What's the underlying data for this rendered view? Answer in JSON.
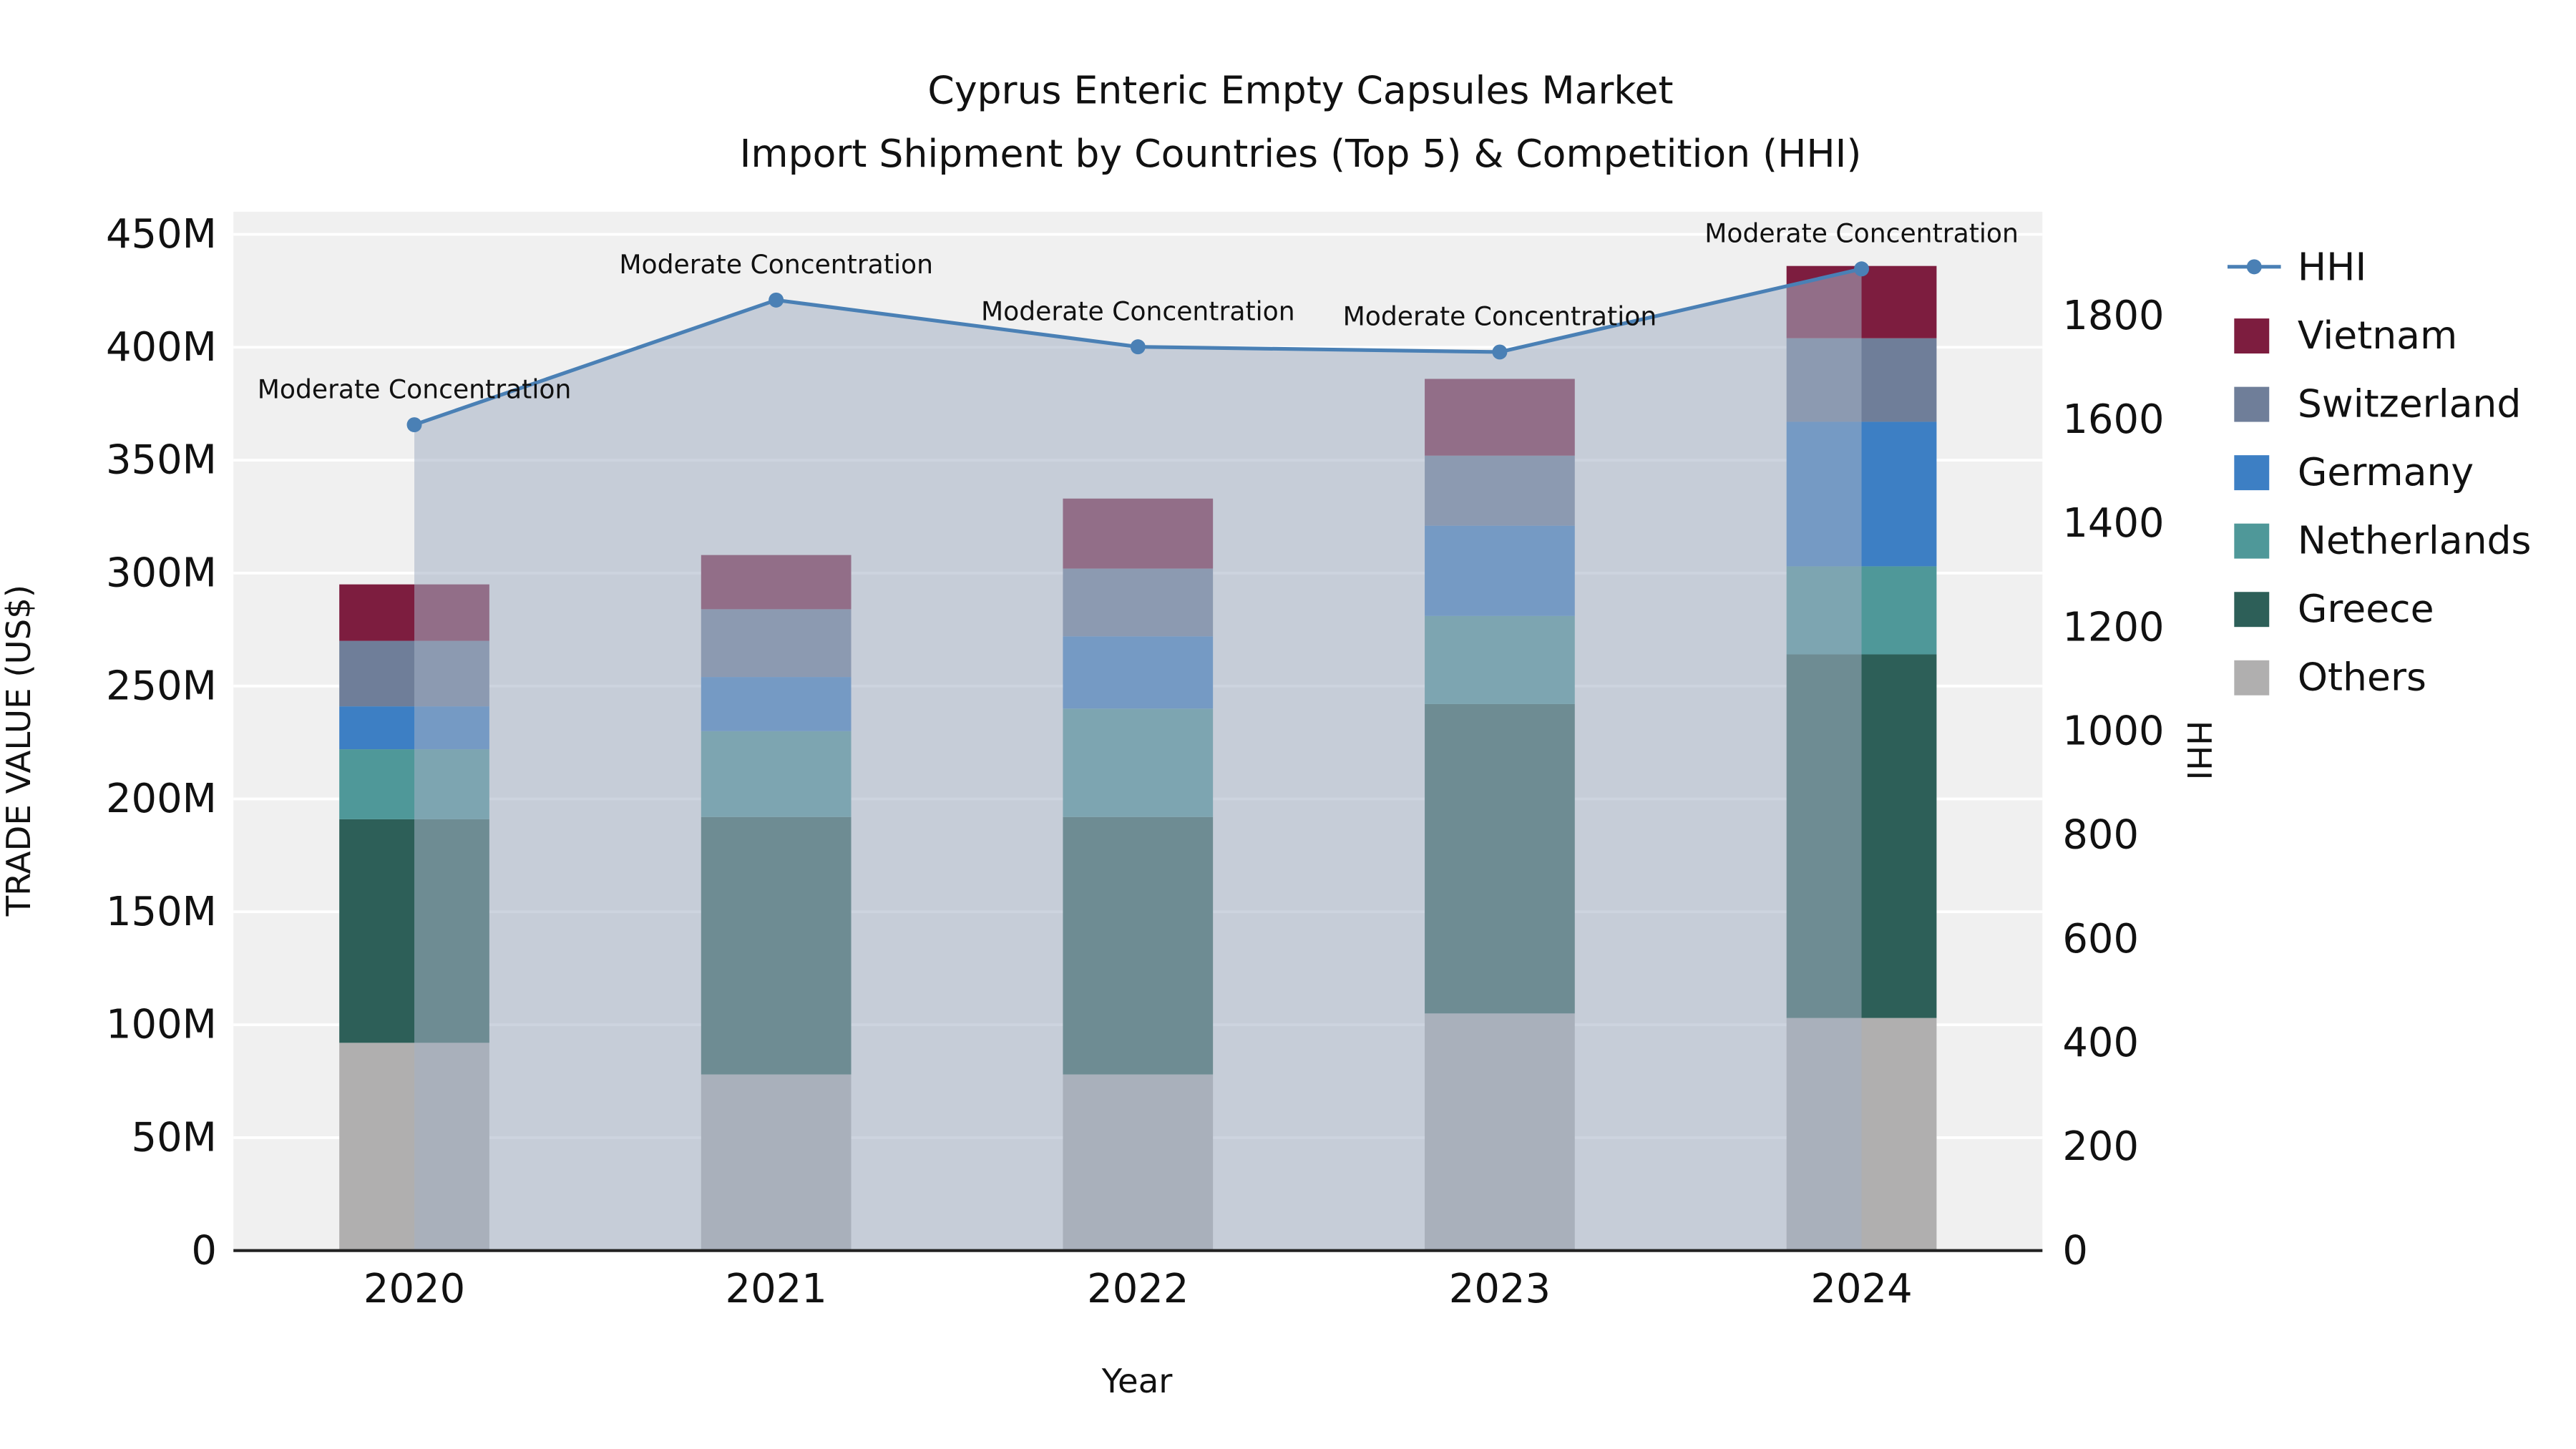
{
  "chart_data": {
    "type": "combo-stacked-bar-line",
    "title": "Cyprus Enteric Empty Capsules Market",
    "subtitle": "Import Shipment by Countries (Top 5) & Competition (HHI)",
    "xlabel": "Year",
    "ylabel_left": "TRADE VALUE (US$)",
    "ylabel_right": "HHI",
    "categories": [
      "2020",
      "2021",
      "2022",
      "2023",
      "2024"
    ],
    "value_units": "US$ millions",
    "bar_series": [
      {
        "name": "Others",
        "color": "#b0afaf",
        "values": [
          92,
          78,
          78,
          105,
          103
        ]
      },
      {
        "name": "Greece",
        "color": "#2d5f58",
        "values": [
          99,
          114,
          114,
          137,
          161
        ]
      },
      {
        "name": "Netherlands",
        "color": "#4f9899",
        "values": [
          31,
          38,
          48,
          39,
          39
        ]
      },
      {
        "name": "Germany",
        "color": "#3d7fc4",
        "values": [
          19,
          24,
          32,
          40,
          64
        ]
      },
      {
        "name": "Switzerland",
        "color": "#6f7e99",
        "values": [
          29,
          30,
          30,
          31,
          37
        ]
      },
      {
        "name": "Vietnam",
        "color": "#7d1d3f",
        "values": [
          25,
          24,
          31,
          34,
          32
        ]
      }
    ],
    "bar_totals": [
      295,
      308,
      333,
      386,
      436
    ],
    "line_series": {
      "name": "HHI",
      "color": "#4a80b5",
      "values": [
        1590,
        1830,
        1740,
        1730,
        1890
      ],
      "area_fill": "rgba(164,176,196,0.55)"
    },
    "annotations": [
      "Moderate Concentration",
      "Moderate Concentration",
      "Moderate Concentration",
      "Moderate Concentration",
      "Moderate Concentration"
    ],
    "left_axis": {
      "max": 460,
      "ticks": [
        0,
        50,
        100,
        150,
        200,
        250,
        300,
        350,
        400,
        450
      ],
      "labels": [
        "0",
        "50M",
        "100M",
        "150M",
        "200M",
        "250M",
        "300M",
        "350M",
        "400M",
        "450M"
      ]
    },
    "right_axis": {
      "max": 2000,
      "ticks": [
        0,
        200,
        400,
        600,
        800,
        1000,
        1200,
        1400,
        1600,
        1800
      ],
      "labels": [
        "0",
        "200",
        "400",
        "600",
        "800",
        "1000",
        "1200",
        "1400",
        "1600",
        "1800"
      ]
    },
    "legend": [
      {
        "label": "HHI",
        "type": "line",
        "color": "#4a80b5"
      },
      {
        "label": "Vietnam",
        "type": "swatch",
        "color": "#7d1d3f"
      },
      {
        "label": "Switzerland",
        "type": "swatch",
        "color": "#6f7e99"
      },
      {
        "label": "Germany",
        "type": "swatch",
        "color": "#3d7fc4"
      },
      {
        "label": "Netherlands",
        "type": "swatch",
        "color": "#4f9899"
      },
      {
        "label": "Greece",
        "type": "swatch",
        "color": "#2d5f58"
      },
      {
        "label": "Others",
        "type": "swatch",
        "color": "#b0afaf"
      }
    ],
    "colors": {
      "plot_bg": "#f0f0f0",
      "gridline": "#ffffff",
      "axis_line": "#222222",
      "text": "#111111"
    },
    "legend_position": "right",
    "grid": "horizontal-white-on-gray"
  }
}
